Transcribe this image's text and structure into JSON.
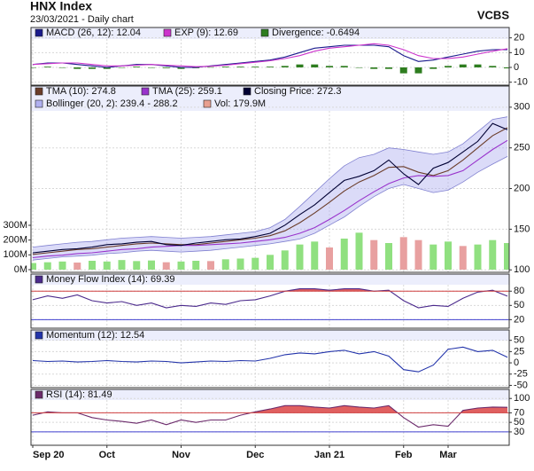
{
  "header": {
    "title": "HNX Index",
    "subtitle": "23/03/2021 - Daily chart",
    "brand": "VCBS"
  },
  "chart_data": [
    {
      "type": "line",
      "ylim": [
        -12,
        27
      ],
      "yticks": [
        20,
        10,
        0,
        -10
      ],
      "grid": true,
      "series": [
        {
          "name": "MACD (26, 12): 12.04",
          "kind": "line",
          "color": "#1a1a8c",
          "values": [
            2,
            3,
            3,
            2,
            1,
            0,
            1,
            2,
            2,
            1,
            0,
            0,
            1,
            2,
            3,
            4,
            5,
            7,
            10,
            13,
            14,
            15,
            15,
            15,
            14,
            8,
            4,
            5,
            7,
            9,
            11,
            12,
            12.04
          ]
        },
        {
          "name": "EXP (9): 12.69",
          "kind": "line",
          "color": "#cc33cc",
          "values": [
            2,
            2.5,
            3,
            3,
            2,
            1,
            1,
            1.5,
            2,
            1.5,
            1,
            0.5,
            0.8,
            1.5,
            2.5,
            3.5,
            4.5,
            6,
            8,
            11,
            13,
            14,
            15,
            16,
            15,
            12,
            8,
            6,
            6,
            7,
            9,
            11,
            12.69
          ]
        },
        {
          "name": "Divergence: -0.6494",
          "kind": "bar",
          "color": "#2e7d1f",
          "values": [
            0,
            0.5,
            0,
            -1,
            -1,
            -1,
            0,
            0.5,
            0,
            -0.5,
            -1,
            -0.5,
            0.2,
            0.5,
            0.5,
            0.5,
            0.5,
            1,
            2,
            2,
            1,
            1,
            0,
            -1,
            -1,
            -4,
            -4,
            -1,
            1,
            2,
            2,
            1,
            -0.6494
          ]
        }
      ]
    },
    {
      "type": "line",
      "ylim": [
        97,
        326
      ],
      "yticks": [
        100,
        150,
        200,
        250,
        300
      ],
      "grid": true,
      "y2lim": [
        -18,
        1242
      ],
      "y2ticks": [
        {
          "value": 300,
          "label": "300M"
        },
        {
          "value": 200,
          "label": "200M"
        },
        {
          "value": 100,
          "label": "100M"
        },
        {
          "value": 0,
          "label": "0M"
        }
      ],
      "series": [
        {
          "name": "TMA (10): 274.8",
          "kind": "line",
          "color": "#6b3d2a",
          "values": [
            119,
            121,
            123,
            125,
            126,
            128,
            130,
            132,
            133,
            132,
            131,
            131,
            133,
            135,
            137,
            139,
            142,
            148,
            158,
            170,
            183,
            197,
            208,
            216,
            226,
            227,
            220,
            216,
            222,
            235,
            250,
            265,
            274.8
          ]
        },
        {
          "name": "TMA (25): 259.1",
          "kind": "line",
          "color": "#9933cc",
          "values": [
            115,
            117,
            118,
            120,
            121,
            123,
            125,
            126,
            128,
            129,
            130,
            130,
            131,
            132,
            133,
            135,
            137,
            140,
            145,
            152,
            162,
            173,
            185,
            196,
            206,
            213,
            216,
            215,
            216,
            222,
            235,
            248,
            259.1
          ]
        },
        {
          "name": "Closing Price: 272.3",
          "kind": "line",
          "color": "#000033",
          "values": [
            121,
            123,
            125,
            126,
            128,
            131,
            132,
            134,
            135,
            131,
            130,
            133,
            135,
            137,
            138,
            141,
            145,
            155,
            168,
            180,
            195,
            210,
            215,
            222,
            235,
            218,
            205,
            225,
            232,
            245,
            258,
            280,
            272.3
          ]
        },
        {
          "name": "Bollinger (20, 2): 239.4 - 288.2",
          "kind": "band",
          "color": "#b0b0f0",
          "upper": [
            128,
            130,
            132,
            134,
            135,
            137,
            139,
            140,
            141,
            140,
            139,
            140,
            141,
            143,
            145,
            147,
            152,
            162,
            178,
            195,
            212,
            228,
            238,
            242,
            250,
            248,
            245,
            242,
            245,
            255,
            270,
            285,
            288.2
          ],
          "lower": [
            112,
            114,
            116,
            117,
            118,
            120,
            121,
            123,
            124,
            123,
            122,
            123,
            124,
            126,
            128,
            130,
            132,
            135,
            138,
            145,
            155,
            165,
            178,
            190,
            200,
            205,
            200,
            195,
            198,
            208,
            220,
            230,
            239.4
          ]
        },
        {
          "name": "Vol: 179.9M",
          "kind": "bar",
          "axis": "y2",
          "color": "#e8a090",
          "values": [
            45,
            50,
            55,
            48,
            60,
            55,
            65,
            58,
            62,
            50,
            55,
            60,
            58,
            70,
            75,
            80,
            100,
            130,
            170,
            190,
            150,
            210,
            250,
            200,
            180,
            220,
            200,
            170,
            190,
            160,
            170,
            200,
            179.9
          ],
          "colors": [
            "#90e080",
            "#90e080",
            "#90e080",
            "#e8a0a0",
            "#90e080",
            "#90e080",
            "#90e080",
            "#90e080",
            "#90e080",
            "#e8a0a0",
            "#90e080",
            "#90e080",
            "#e8a0a0",
            "#90e080",
            "#90e080",
            "#90e080",
            "#90e080",
            "#90e080",
            "#90e080",
            "#90e080",
            "#e8a0a0",
            "#90e080",
            "#90e080",
            "#e8a0a0",
            "#90e080",
            "#e8a0a0",
            "#e8a0a0",
            "#90e080",
            "#90e080",
            "#e8a0a0",
            "#90e080",
            "#90e080",
            "#90e080"
          ]
        }
      ]
    },
    {
      "type": "line",
      "ylim": [
        2,
        116
      ],
      "yticks": [
        80,
        50,
        20
      ],
      "grid": true,
      "ref_lines": [
        {
          "value": 80,
          "color": "#d04040"
        },
        {
          "value": 20,
          "color": "#4040d0"
        }
      ],
      "series": [
        {
          "name": "Money Flow Index (14): 69.39",
          "kind": "line",
          "color": "#4b2a8c",
          "fill_above": 80,
          "fill_color": "#e06060",
          "values": [
            62,
            70,
            65,
            72,
            60,
            55,
            58,
            50,
            55,
            45,
            50,
            48,
            55,
            52,
            60,
            62,
            70,
            80,
            85,
            85,
            82,
            85,
            85,
            80,
            82,
            60,
            45,
            50,
            48,
            65,
            78,
            82,
            69.39
          ]
        }
      ]
    },
    {
      "type": "line",
      "ylim": [
        -55,
        73
      ],
      "yticks": [
        50,
        25,
        0,
        -25,
        -50
      ],
      "grid": true,
      "series": [
        {
          "name": "Momentum (12): 12.54",
          "kind": "line",
          "color": "#2233aa",
          "values": [
            5,
            3,
            4,
            2,
            3,
            5,
            3,
            2,
            4,
            3,
            0,
            2,
            4,
            3,
            5,
            4,
            10,
            18,
            22,
            20,
            25,
            28,
            20,
            25,
            15,
            -15,
            -20,
            -5,
            30,
            35,
            25,
            28,
            12.54
          ]
        }
      ]
    },
    {
      "type": "line",
      "ylim": [
        2,
        119
      ],
      "yticks": [
        100,
        70,
        50,
        30
      ],
      "grid": true,
      "ref_lines": [
        {
          "value": 70,
          "color": "#d04040"
        },
        {
          "value": 30,
          "color": "#4040d0"
        }
      ],
      "categories": [
        "Sep 20",
        null,
        null,
        null,
        null,
        "Oct",
        null,
        null,
        null,
        null,
        "Nov",
        null,
        null,
        null,
        null,
        "Dec",
        null,
        null,
        null,
        null,
        "Jan 21",
        null,
        null,
        null,
        null,
        "Feb",
        null,
        null,
        "Mar",
        null,
        null,
        null,
        null
      ],
      "series": [
        {
          "name": "RSI (14): 81.49",
          "kind": "line",
          "color": "#6b2a6b",
          "fill_above": 70,
          "fill_color": "#e06060",
          "values": [
            65,
            72,
            70,
            70,
            60,
            55,
            52,
            48,
            55,
            45,
            55,
            50,
            55,
            55,
            65,
            72,
            78,
            85,
            85,
            82,
            80,
            85,
            82,
            80,
            85,
            60,
            40,
            45,
            42,
            75,
            80,
            82,
            81.49
          ]
        }
      ]
    }
  ]
}
